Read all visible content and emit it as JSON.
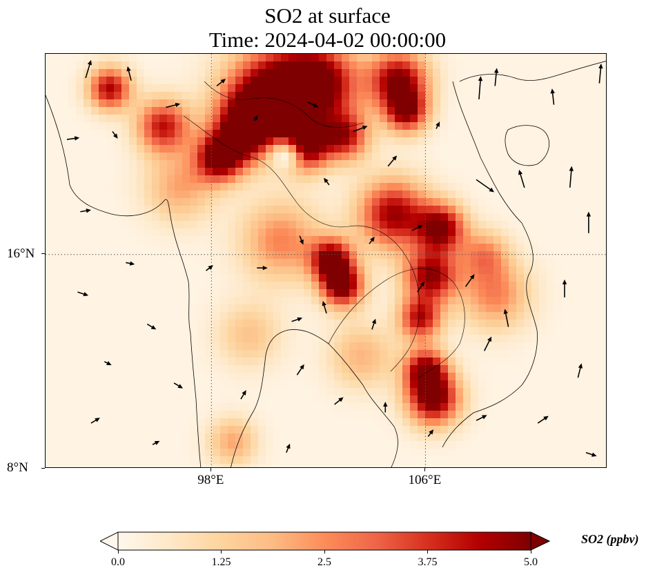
{
  "title": {
    "line1": "SO2 at surface",
    "line2": "Time: 2024-04-02 00:00:00"
  },
  "axes": {
    "lon_range": [
      91.8,
      112.8
    ],
    "lat_range": [
      8,
      23.5
    ],
    "x_ticks": [
      {
        "value": 98,
        "label": "98°E"
      },
      {
        "value": 106,
        "label": "106°E"
      }
    ],
    "y_ticks": [
      {
        "value": 16,
        "label": "16°N"
      },
      {
        "value": 8,
        "label": "8°N"
      }
    ],
    "gridlines": "dotted"
  },
  "colorbar": {
    "label": "SO2 (ppbv)",
    "colormap": "OrRd",
    "colors": [
      "#fff7ec",
      "#fee8c8",
      "#fdd49e",
      "#fdbb84",
      "#fc8d59",
      "#ef6548",
      "#d7301f",
      "#b30000",
      "#7f0000"
    ],
    "ticks": [
      {
        "value": 0.0,
        "label": "0.0"
      },
      {
        "value": 1.25,
        "label": "1.25"
      },
      {
        "value": 2.5,
        "label": "2.5"
      },
      {
        "value": 3.75,
        "label": "3.75"
      },
      {
        "value": 5.0,
        "label": "5.0"
      }
    ],
    "range": [
      0,
      5
    ],
    "extend": "both"
  },
  "field": {
    "variable": "SO2",
    "units": "ppbv",
    "hotspots": [
      {
        "lon": 100.2,
        "lat": 22.0,
        "value": 5.0,
        "r": 1.7
      },
      {
        "lon": 102.0,
        "lat": 22.4,
        "value": 5.0,
        "r": 1.5
      },
      {
        "lon": 99.3,
        "lat": 20.7,
        "value": 4.8,
        "r": 1.2
      },
      {
        "lon": 98.3,
        "lat": 19.6,
        "value": 4.8,
        "r": 0.9
      },
      {
        "lon": 101.5,
        "lat": 20.0,
        "value": 4.6,
        "r": 0.9
      },
      {
        "lon": 105.0,
        "lat": 22.5,
        "value": 4.8,
        "r": 1.1
      },
      {
        "lon": 105.3,
        "lat": 21.3,
        "value": 4.0,
        "r": 0.8
      },
      {
        "lon": 96.2,
        "lat": 20.8,
        "value": 4.0,
        "r": 1.0
      },
      {
        "lon": 94.2,
        "lat": 22.2,
        "value": 4.3,
        "r": 0.8
      },
      {
        "lon": 103.0,
        "lat": 20.4,
        "value": 3.8,
        "r": 0.9
      },
      {
        "lon": 102.5,
        "lat": 15.8,
        "value": 4.8,
        "r": 0.8
      },
      {
        "lon": 102.9,
        "lat": 14.8,
        "value": 4.8,
        "r": 0.8
      },
      {
        "lon": 104.8,
        "lat": 17.5,
        "value": 4.5,
        "r": 1.3
      },
      {
        "lon": 106.6,
        "lat": 17.0,
        "value": 4.6,
        "r": 0.9
      },
      {
        "lon": 106.2,
        "lat": 15.2,
        "value": 4.6,
        "r": 1.0
      },
      {
        "lon": 105.8,
        "lat": 13.6,
        "value": 4.0,
        "r": 0.8
      },
      {
        "lon": 106.0,
        "lat": 11.7,
        "value": 4.4,
        "r": 0.8
      },
      {
        "lon": 106.3,
        "lat": 10.6,
        "value": 5.0,
        "r": 1.0
      },
      {
        "lon": 108.6,
        "lat": 14.5,
        "value": 2.5,
        "r": 1.3
      },
      {
        "lon": 108.2,
        "lat": 16.0,
        "value": 2.2,
        "r": 0.9
      },
      {
        "lon": 100.6,
        "lat": 16.5,
        "value": 2.5,
        "r": 1.5
      },
      {
        "lon": 99.4,
        "lat": 13.0,
        "value": 1.5,
        "r": 1.2
      },
      {
        "lon": 98.8,
        "lat": 9.0,
        "value": 2.0,
        "r": 0.9
      },
      {
        "lon": 96.8,
        "lat": 18.5,
        "value": 2.0,
        "r": 1.3
      },
      {
        "lon": 103.6,
        "lat": 12.2,
        "value": 1.8,
        "r": 1.2
      }
    ],
    "lows": [
      {
        "lon": 100.7,
        "lat": 19.6,
        "value": 0.2,
        "r": 0.6
      }
    ]
  },
  "wind": {
    "arrows": [
      {
        "lon": 93.3,
        "lat": 22.6,
        "u": 0.3,
        "v": 1.0
      },
      {
        "lon": 95.0,
        "lat": 22.5,
        "u": -0.2,
        "v": 0.8
      },
      {
        "lon": 92.6,
        "lat": 20.3,
        "u": 0.7,
        "v": 0.1
      },
      {
        "lon": 94.3,
        "lat": 20.6,
        "u": 0.3,
        "v": -0.4
      },
      {
        "lon": 96.3,
        "lat": 21.5,
        "u": 0.8,
        "v": 0.2
      },
      {
        "lon": 98.2,
        "lat": 22.3,
        "u": 0.5,
        "v": 0.4
      },
      {
        "lon": 99.6,
        "lat": 21.0,
        "u": 0.2,
        "v": 0.3
      },
      {
        "lon": 101.6,
        "lat": 21.7,
        "u": 0.6,
        "v": -0.3
      },
      {
        "lon": 103.3,
        "lat": 20.6,
        "u": 0.8,
        "v": 0.3
      },
      {
        "lon": 106.4,
        "lat": 20.7,
        "u": 0.2,
        "v": 0.4
      },
      {
        "lon": 108.0,
        "lat": 21.8,
        "u": 0.1,
        "v": 1.3
      },
      {
        "lon": 108.6,
        "lat": 22.3,
        "u": 0.1,
        "v": 1.0
      },
      {
        "lon": 110.8,
        "lat": 21.6,
        "u": -0.1,
        "v": 0.9
      },
      {
        "lon": 112.5,
        "lat": 22.4,
        "u": 0.1,
        "v": 1.1
      },
      {
        "lon": 107.9,
        "lat": 18.8,
        "u": 1.0,
        "v": -0.7
      },
      {
        "lon": 109.7,
        "lat": 18.5,
        "u": -0.3,
        "v": 1.0
      },
      {
        "lon": 111.4,
        "lat": 18.5,
        "u": 0.1,
        "v": 1.2
      },
      {
        "lon": 112.1,
        "lat": 16.8,
        "u": 0.0,
        "v": 1.2
      },
      {
        "lon": 111.2,
        "lat": 14.4,
        "u": 0.0,
        "v": 1.0
      },
      {
        "lon": 109.1,
        "lat": 13.3,
        "u": -0.2,
        "v": 1.0
      },
      {
        "lon": 111.7,
        "lat": 11.4,
        "u": 0.2,
        "v": 0.8
      },
      {
        "lon": 93.1,
        "lat": 17.6,
        "u": 0.6,
        "v": 0.1
      },
      {
        "lon": 94.8,
        "lat": 15.7,
        "u": 0.5,
        "v": -0.1
      },
      {
        "lon": 93.0,
        "lat": 14.6,
        "u": 0.6,
        "v": -0.2
      },
      {
        "lon": 95.6,
        "lat": 13.4,
        "u": 0.5,
        "v": -0.3
      },
      {
        "lon": 94.0,
        "lat": 12.0,
        "u": 0.4,
        "v": -0.2
      },
      {
        "lon": 96.6,
        "lat": 11.2,
        "u": 0.5,
        "v": -0.3
      },
      {
        "lon": 93.5,
        "lat": 9.7,
        "u": 0.5,
        "v": 0.3
      },
      {
        "lon": 95.8,
        "lat": 8.9,
        "u": 0.4,
        "v": 0.2
      },
      {
        "lon": 97.8,
        "lat": 15.4,
        "u": 0.4,
        "v": 0.3
      },
      {
        "lon": 99.7,
        "lat": 15.5,
        "u": 0.6,
        "v": 0.0
      },
      {
        "lon": 101.3,
        "lat": 16.7,
        "u": 0.2,
        "v": -0.5
      },
      {
        "lon": 102.4,
        "lat": 18.6,
        "u": -0.3,
        "v": 0.4
      },
      {
        "lon": 104.6,
        "lat": 19.3,
        "u": 0.5,
        "v": 0.6
      },
      {
        "lon": 103.9,
        "lat": 16.4,
        "u": 0.3,
        "v": 0.4
      },
      {
        "lon": 105.5,
        "lat": 16.9,
        "u": 0.6,
        "v": 0.3
      },
      {
        "lon": 102.3,
        "lat": 13.8,
        "u": -0.2,
        "v": 0.7
      },
      {
        "lon": 104.0,
        "lat": 13.2,
        "u": 0.2,
        "v": 0.6
      },
      {
        "lon": 105.7,
        "lat": 14.6,
        "u": 0.4,
        "v": 0.6
      },
      {
        "lon": 107.5,
        "lat": 14.8,
        "u": 0.5,
        "v": 0.7
      },
      {
        "lon": 108.2,
        "lat": 12.4,
        "u": 0.4,
        "v": 0.8
      },
      {
        "lon": 101.2,
        "lat": 11.5,
        "u": 0.4,
        "v": 0.6
      },
      {
        "lon": 102.6,
        "lat": 10.4,
        "u": 0.5,
        "v": 0.4
      },
      {
        "lon": 104.5,
        "lat": 10.1,
        "u": 0.0,
        "v": 0.6
      },
      {
        "lon": 106.1,
        "lat": 9.2,
        "u": 0.3,
        "v": 0.4
      },
      {
        "lon": 107.9,
        "lat": 9.8,
        "u": 0.6,
        "v": 0.3
      },
      {
        "lon": 110.2,
        "lat": 9.7,
        "u": 0.6,
        "v": 0.4
      },
      {
        "lon": 112.0,
        "lat": 8.6,
        "u": 0.6,
        "v": -0.2
      },
      {
        "lon": 100.8,
        "lat": 8.6,
        "u": 0.2,
        "v": 0.5
      },
      {
        "lon": 99.1,
        "lat": 10.6,
        "u": 0.3,
        "v": 0.5
      },
      {
        "lon": 101.0,
        "lat": 13.5,
        "u": 0.6,
        "v": 0.2
      }
    ]
  }
}
